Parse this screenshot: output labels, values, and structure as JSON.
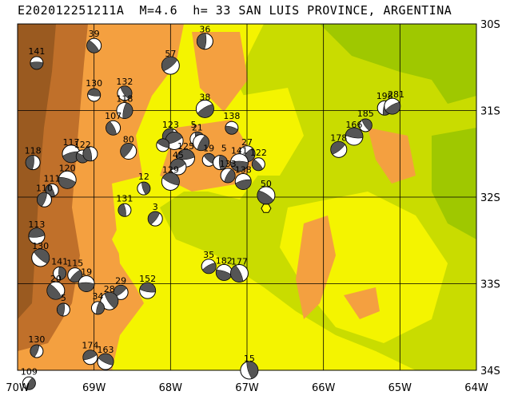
{
  "title": "E202012251211A  M=4.6  h= 33 SAN LUIS PROVINCE, ARGENTINA",
  "map": {
    "lon_range": [
      -70,
      -64
    ],
    "lat_range": [
      -34,
      -30
    ],
    "lon_labels": [
      "70W",
      "69W",
      "68W",
      "67W",
      "66W",
      "65W",
      "64W"
    ],
    "lat_labels": [
      "30S",
      "31S",
      "32S",
      "33S",
      "34S"
    ],
    "colors": {
      "plain": "#f4f400",
      "green": "#c9dc00",
      "dark_green": "#9fc800",
      "orange": "#f4a040",
      "brown": "#c0702a",
      "grid": "#000000",
      "beachball_dark": "#555555",
      "beachball_light": "#ffffff",
      "epicenter": "#ffff00"
    },
    "epicenter": {
      "lon": -66.75,
      "lat": -32.13
    },
    "events": [
      {
        "id": "141",
        "lon": -69.75,
        "lat": -30.45
      },
      {
        "id": "39",
        "lon": -69.0,
        "lat": -30.25
      },
      {
        "id": "36",
        "lon": -67.55,
        "lat": -30.2
      },
      {
        "id": "57",
        "lon": -68.0,
        "lat": -30.48
      },
      {
        "id": "130",
        "lon": -69.0,
        "lat": -30.82
      },
      {
        "id": "132",
        "lon": -68.6,
        "lat": -30.8
      },
      {
        "id": "118",
        "lon": -68.6,
        "lat": -31.0
      },
      {
        "id": "38",
        "lon": -67.55,
        "lat": -30.98
      },
      {
        "id": "138",
        "lon": -67.2,
        "lat": -31.2
      },
      {
        "id": "107",
        "lon": -68.75,
        "lat": -31.2
      },
      {
        "id": "123",
        "lon": -68.0,
        "lat": -31.3
      },
      {
        "id": "22",
        "lon": -67.95,
        "lat": -31.35
      },
      {
        "id": "5",
        "lon": -68.1,
        "lat": -31.4
      },
      {
        "id": "21",
        "lon": -67.65,
        "lat": -31.33
      },
      {
        "id": "121",
        "lon": -67.6,
        "lat": -31.37
      },
      {
        "id": "117",
        "lon": -69.3,
        "lat": -31.5
      },
      {
        "id": "122",
        "lon": -69.15,
        "lat": -31.53
      },
      {
        "id": "120",
        "lon": -69.05,
        "lat": -31.5
      },
      {
        "id": "80",
        "lon": -68.55,
        "lat": -31.47
      },
      {
        "id": "125",
        "lon": -67.8,
        "lat": -31.55
      },
      {
        "id": "19",
        "lon": -67.5,
        "lat": -31.57
      },
      {
        "id": "45",
        "lon": -67.35,
        "lat": -31.6
      },
      {
        "id": "27",
        "lon": -67.0,
        "lat": -31.5
      },
      {
        "id": "141b",
        "lon": -67.1,
        "lat": -31.6
      },
      {
        "id": "122b",
        "lon": -66.85,
        "lat": -31.62
      },
      {
        "id": "118b",
        "lon": -69.8,
        "lat": -31.6
      },
      {
        "id": "178",
        "lon": -65.8,
        "lat": -31.45
      },
      {
        "id": "166",
        "lon": -65.6,
        "lat": -31.3
      },
      {
        "id": "185",
        "lon": -65.45,
        "lat": -31.17
      },
      {
        "id": "198",
        "lon": -65.2,
        "lat": -30.97
      },
      {
        "id": "281",
        "lon": -65.1,
        "lat": -30.95
      },
      {
        "id": "120b",
        "lon": -69.35,
        "lat": -31.8
      },
      {
        "id": "111",
        "lon": -69.55,
        "lat": -31.92
      },
      {
        "id": "110",
        "lon": -69.65,
        "lat": -32.03
      },
      {
        "id": "45b",
        "lon": -67.9,
        "lat": -31.65
      },
      {
        "id": "129",
        "lon": -68.0,
        "lat": -31.82
      },
      {
        "id": "12",
        "lon": -68.35,
        "lat": -31.9
      },
      {
        "id": "133",
        "lon": -67.25,
        "lat": -31.75
      },
      {
        "id": "138b",
        "lon": -67.05,
        "lat": -31.82
      },
      {
        "id": "50",
        "lon": -66.75,
        "lat": -31.98
      },
      {
        "id": "131",
        "lon": -68.6,
        "lat": -32.15
      },
      {
        "id": "3",
        "lon": -68.2,
        "lat": -32.25
      },
      {
        "id": "113",
        "lon": -69.75,
        "lat": -32.45
      },
      {
        "id": "130b",
        "lon": -69.7,
        "lat": -32.7
      },
      {
        "id": "141c",
        "lon": -69.45,
        "lat": -32.88
      },
      {
        "id": "115",
        "lon": -69.25,
        "lat": -32.9
      },
      {
        "id": "19b",
        "lon": -69.1,
        "lat": -33.0
      },
      {
        "id": "20",
        "lon": -69.5,
        "lat": -33.08
      },
      {
        "id": "5b",
        "lon": -69.4,
        "lat": -33.3
      },
      {
        "id": "29",
        "lon": -68.65,
        "lat": -33.1
      },
      {
        "id": "152",
        "lon": -68.3,
        "lat": -33.08
      },
      {
        "id": "28",
        "lon": -68.8,
        "lat": -33.2
      },
      {
        "id": "34",
        "lon": -68.95,
        "lat": -33.28
      },
      {
        "id": "35",
        "lon": -67.5,
        "lat": -32.8
      },
      {
        "id": "182",
        "lon": -67.3,
        "lat": -32.87
      },
      {
        "id": "177",
        "lon": -67.1,
        "lat": -32.88
      },
      {
        "id": "130c",
        "lon": -69.75,
        "lat": -33.78
      },
      {
        "id": "174",
        "lon": -69.05,
        "lat": -33.85
      },
      {
        "id": "163",
        "lon": -68.85,
        "lat": -33.9
      },
      {
        "id": "15",
        "lon": -66.97,
        "lat": -34.0
      },
      {
        "id": "109",
        "lon": -69.85,
        "lat": -34.15
      }
    ],
    "event_labels": [
      {
        "text": "141",
        "lon": -69.75,
        "lat": -30.45
      },
      {
        "text": "39",
        "lon": -69.0,
        "lat": -30.25
      },
      {
        "text": "36",
        "lon": -67.55,
        "lat": -30.2
      },
      {
        "text": "57",
        "lon": -68.0,
        "lat": -30.48
      },
      {
        "text": "130",
        "lon": -69.0,
        "lat": -30.82
      },
      {
        "text": "132",
        "lon": -68.6,
        "lat": -30.8
      },
      {
        "text": "118",
        "lon": -68.6,
        "lat": -31.0
      },
      {
        "text": "38",
        "lon": -67.55,
        "lat": -30.98
      },
      {
        "text": "138",
        "lon": -67.2,
        "lat": -31.2
      },
      {
        "text": "107",
        "lon": -68.75,
        "lat": -31.2
      },
      {
        "text": "123",
        "lon": -68.0,
        "lat": -31.3
      },
      {
        "text": "5",
        "lon": -67.7,
        "lat": -31.3
      },
      {
        "text": "21",
        "lon": -67.65,
        "lat": -31.33
      },
      {
        "text": "117",
        "lon": -69.3,
        "lat": -31.5
      },
      {
        "text": "122",
        "lon": -69.15,
        "lat": -31.53
      },
      {
        "text": "80",
        "lon": -68.55,
        "lat": -31.47
      },
      {
        "text": "125",
        "lon": -67.8,
        "lat": -31.55
      },
      {
        "text": "19",
        "lon": -67.5,
        "lat": -31.57
      },
      {
        "text": "5",
        "lon": -67.3,
        "lat": -31.57
      },
      {
        "text": "27",
        "lon": -67.0,
        "lat": -31.5
      },
      {
        "text": "141",
        "lon": -67.1,
        "lat": -31.6
      },
      {
        "text": "122",
        "lon": -66.85,
        "lat": -31.62
      },
      {
        "text": "118",
        "lon": -69.8,
        "lat": -31.6
      },
      {
        "text": "178",
        "lon": -65.8,
        "lat": -31.45
      },
      {
        "text": "166",
        "lon": -65.6,
        "lat": -31.3
      },
      {
        "text": "185",
        "lon": -65.45,
        "lat": -31.17
      },
      {
        "text": "198",
        "lon": -65.2,
        "lat": -30.97
      },
      {
        "text": "281",
        "lon": -65.05,
        "lat": -30.95
      },
      {
        "text": "120",
        "lon": -69.35,
        "lat": -31.8
      },
      {
        "text": "111",
        "lon": -69.55,
        "lat": -31.92
      },
      {
        "text": "110",
        "lon": -69.65,
        "lat": -32.03
      },
      {
        "text": "45",
        "lon": -67.9,
        "lat": -31.65
      },
      {
        "text": "129",
        "lon": -68.0,
        "lat": -31.82
      },
      {
        "text": "12",
        "lon": -68.35,
        "lat": -31.9
      },
      {
        "text": "133",
        "lon": -67.25,
        "lat": -31.75
      },
      {
        "text": "138",
        "lon": -67.05,
        "lat": -31.82
      },
      {
        "text": "50",
        "lon": -66.75,
        "lat": -31.98
      },
      {
        "text": "131",
        "lon": -68.6,
        "lat": -32.15
      },
      {
        "text": "3",
        "lon": -68.2,
        "lat": -32.25
      },
      {
        "text": "113",
        "lon": -69.75,
        "lat": -32.45
      },
      {
        "text": "130",
        "lon": -69.7,
        "lat": -32.7
      },
      {
        "text": "141",
        "lon": -69.45,
        "lat": -32.88
      },
      {
        "text": "115",
        "lon": -69.25,
        "lat": -32.9
      },
      {
        "text": "19",
        "lon": -69.1,
        "lat": -33.0
      },
      {
        "text": "20",
        "lon": -69.5,
        "lat": -33.08
      },
      {
        "text": "5",
        "lon": -69.4,
        "lat": -33.3
      },
      {
        "text": "29",
        "lon": -68.65,
        "lat": -33.1
      },
      {
        "text": "152",
        "lon": -68.3,
        "lat": -33.08
      },
      {
        "text": "28",
        "lon": -68.8,
        "lat": -33.2
      },
      {
        "text": "34",
        "lon": -68.95,
        "lat": -33.28
      },
      {
        "text": "35",
        "lon": -67.5,
        "lat": -32.8
      },
      {
        "text": "182",
        "lon": -67.3,
        "lat": -32.87
      },
      {
        "text": "177",
        "lon": -67.1,
        "lat": -32.88
      },
      {
        "text": "130",
        "lon": -69.75,
        "lat": -33.78
      },
      {
        "text": "174",
        "lon": -69.05,
        "lat": -33.85
      },
      {
        "text": "163",
        "lon": -68.85,
        "lat": -33.9
      },
      {
        "text": "15",
        "lon": -66.97,
        "lat": -34.0
      },
      {
        "text": "109",
        "lon": -69.85,
        "lat": -34.15
      }
    ]
  }
}
